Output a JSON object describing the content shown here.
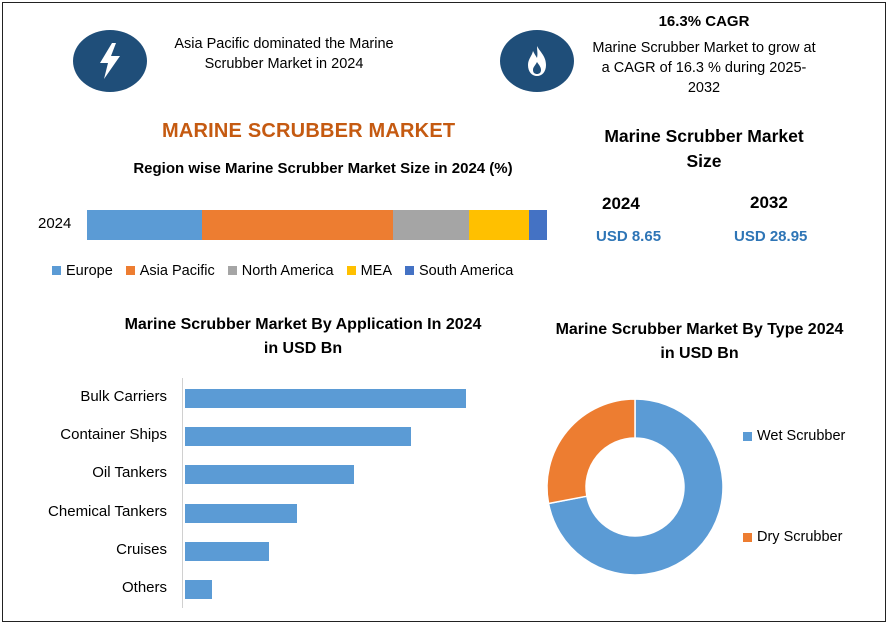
{
  "callouts": {
    "left_text": "Asia Pacific dominated the Marine Scrubber Market in 2024",
    "right_heading": "16.3% CAGR",
    "right_text": "Marine Scrubber Market to grow at a CAGR of 16.3 % during 2025-2032",
    "left_icon": "lightning-bolt-icon",
    "right_icon": "flame-icon",
    "icon_color": "#1f4e79"
  },
  "main_title": "MARINE SCRUBBER MARKET",
  "market_size": {
    "title": "Marine Scrubber Market Size",
    "years": [
      "2024",
      "2032"
    ],
    "values": [
      "USD 8.65",
      "USD 28.95"
    ]
  },
  "chart_data": [
    {
      "type": "bar",
      "orientation": "horizontal-stacked",
      "title": "Region wise Marine Scrubber Market Size in 2024 (%)",
      "categories": [
        "2024"
      ],
      "series": [
        {
          "name": "Europe",
          "values": [
            25
          ],
          "color": "#5b9bd5"
        },
        {
          "name": "Asia Pacific",
          "values": [
            41.5
          ],
          "color": "#ed7d31"
        },
        {
          "name": "North America",
          "values": [
            16.5
          ],
          "color": "#a5a5a5"
        },
        {
          "name": "MEA",
          "values": [
            13
          ],
          "color": "#ffc000"
        },
        {
          "name": "South America",
          "values": [
            4
          ],
          "color": "#4472c4"
        }
      ],
      "xlim": [
        0,
        100
      ],
      "legend": "bottom"
    },
    {
      "type": "bar",
      "orientation": "horizontal",
      "title": "Marine Scrubber Market By Application In 2024 in USD Bn",
      "categories": [
        "Bulk Carriers",
        "Container Ships",
        "Oil Tankers",
        "Chemical Tankers",
        "Cruises",
        "Others"
      ],
      "values": [
        2.8,
        2.25,
        1.68,
        1.12,
        0.84,
        0.27
      ],
      "xlim": [
        0,
        2.8
      ],
      "color": "#5b9bd5"
    },
    {
      "type": "pie",
      "style": "donut",
      "title": "Marine Scrubber Market By Type 2024 in USD Bn",
      "labels": [
        "Wet Scrubber",
        "Dry Scrubber"
      ],
      "values": [
        72,
        28
      ],
      "colors": [
        "#5b9bd5",
        "#ed7d31"
      ],
      "legend": "right"
    }
  ]
}
